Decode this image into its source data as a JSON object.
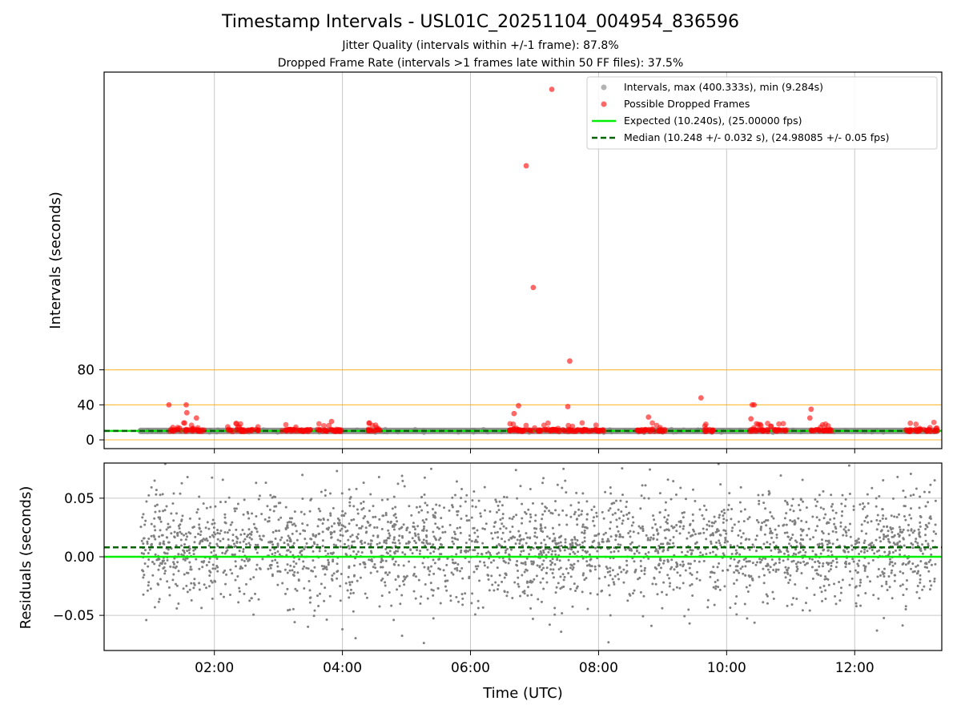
{
  "title": "Timestamp Intervals - USL01C_20251104_004954_836596",
  "subtitle_jitter": "Jitter Quality (intervals within +/-1 frame): 87.8%",
  "subtitle_dropped": "Dropped Frame Rate (intervals >1 frames late within 50 FF files): 37.5%",
  "colors": {
    "intervals": "#808080",
    "dropped": "#ff0000",
    "expected": "#00ee00",
    "median": "#006400",
    "threshold": "#ffa500",
    "grid": "#b0b0b0"
  },
  "chart_data": [
    {
      "type": "scatter",
      "name": "intervals",
      "ylabel": "Intervals (seconds)",
      "xlim_hours": [
        0.278,
        13.36
      ],
      "ylim": [
        -10,
        420
      ],
      "yticks": [
        0,
        40,
        80
      ],
      "ytick_labels": [
        "0",
        "40",
        "80"
      ],
      "xgrid_hours": [
        2,
        4,
        6,
        8,
        10,
        12
      ],
      "threshold_lines": [
        0,
        40,
        80
      ],
      "interval_range_hours": [
        0.85,
        13.28
      ],
      "expected_value": 10.24,
      "median_value": 10.248,
      "legend_position": "upper right",
      "legend": {
        "intervals": "Intervals, max (400.333s), min (9.284s)",
        "dropped": "Possible Dropped Frames",
        "expected": "Expected (10.240s), (25.00000 fps)",
        "median": "Median (10.248 +/- 0.032 s), (24.98085 +/- 0.05 fps)"
      },
      "dropped_clusters_hours": [
        [
          1.3,
          1.85
        ],
        [
          2.2,
          2.7
        ],
        [
          3.05,
          3.5
        ],
        [
          3.6,
          4.0
        ],
        [
          4.4,
          4.6
        ],
        [
          6.6,
          6.7
        ],
        [
          6.7,
          7.3
        ],
        [
          7.3,
          8.1
        ],
        [
          8.6,
          9.05
        ],
        [
          9.65,
          9.8
        ],
        [
          10.35,
          10.95
        ],
        [
          11.3,
          11.65
        ],
        [
          12.8,
          13.3
        ]
      ],
      "dropped_outliers": [
        {
          "x": 7.27,
          "y": 400.3
        },
        {
          "x": 6.87,
          "y": 313
        },
        {
          "x": 6.98,
          "y": 174
        },
        {
          "x": 7.55,
          "y": 90
        },
        {
          "x": 9.6,
          "y": 48
        },
        {
          "x": 1.29,
          "y": 40
        },
        {
          "x": 1.56,
          "y": 40
        },
        {
          "x": 6.75,
          "y": 39
        },
        {
          "x": 7.52,
          "y": 38
        },
        {
          "x": 10.4,
          "y": 40
        },
        {
          "x": 10.43,
          "y": 40
        },
        {
          "x": 11.32,
          "y": 35
        },
        {
          "x": 1.57,
          "y": 31
        },
        {
          "x": 1.72,
          "y": 25
        },
        {
          "x": 3.83,
          "y": 21
        },
        {
          "x": 8.78,
          "y": 26
        },
        {
          "x": 10.38,
          "y": 24
        },
        {
          "x": 11.3,
          "y": 25
        },
        {
          "x": 6.68,
          "y": 30
        }
      ]
    },
    {
      "type": "scatter",
      "name": "residuals",
      "xlabel": "Time (UTC)",
      "ylabel": "Residuals (seconds)",
      "xlim_hours": [
        0.278,
        13.36
      ],
      "ylim": [
        -0.08,
        0.08
      ],
      "yticks": [
        -0.05,
        0,
        0.05
      ],
      "ytick_labels": [
        "−0.05",
        "0.00",
        "0.05"
      ],
      "xticks_hours": [
        2,
        4,
        6,
        8,
        10,
        12
      ],
      "xtick_labels": [
        "02:00",
        "04:00",
        "06:00",
        "08:00",
        "10:00",
        "12:00"
      ],
      "expected_residual": 0,
      "median_residual": 0.008,
      "point_range_hours": [
        0.85,
        13.3
      ],
      "point_spread_std": 0.024,
      "point_count": 2800
    }
  ]
}
